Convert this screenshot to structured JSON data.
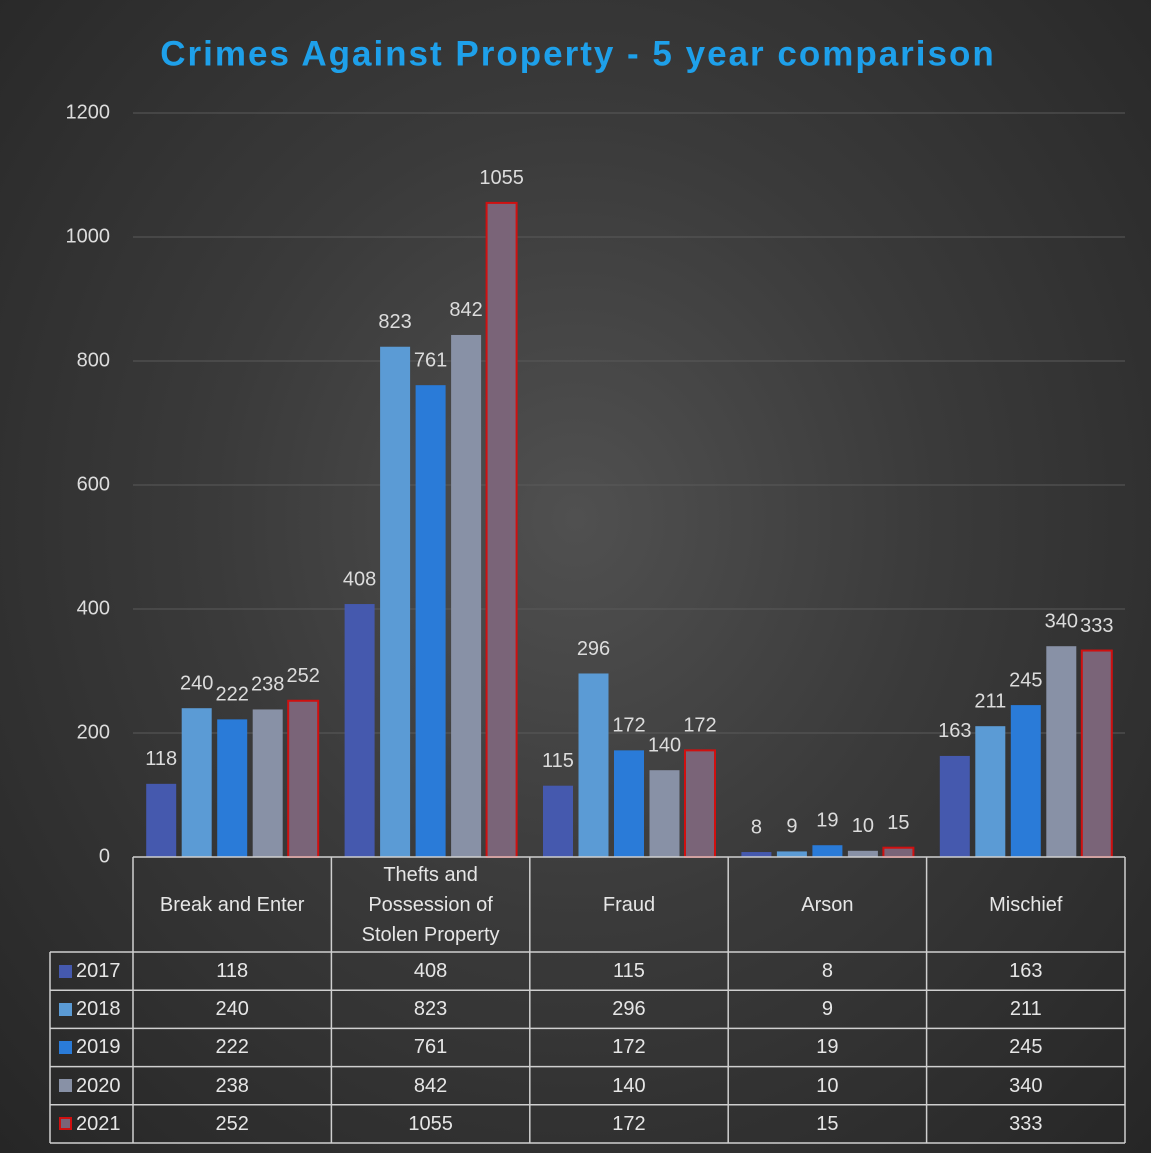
{
  "chart_data": {
    "type": "bar",
    "title": "Crimes Against Property - 5 year comparison",
    "categories": [
      "Break and Enter",
      "Thefts and Possession of Stolen Property",
      "Fraud",
      "Arson",
      "Mischief"
    ],
    "series": [
      {
        "name": "2017",
        "color": "#4559ae",
        "values": [
          118,
          408,
          115,
          8,
          163
        ]
      },
      {
        "name": "2018",
        "color": "#5b9bd5",
        "values": [
          240,
          823,
          296,
          9,
          211
        ]
      },
      {
        "name": "2019",
        "color": "#2a7bd8",
        "values": [
          222,
          761,
          172,
          19,
          245
        ]
      },
      {
        "name": "2020",
        "color": "#8891a6",
        "values": [
          238,
          842,
          140,
          10,
          340
        ]
      },
      {
        "name": "2021",
        "color": "#7a6478",
        "outline": "#d01010",
        "values": [
          252,
          1055,
          172,
          15,
          333
        ]
      }
    ],
    "ylim": [
      0,
      1200
    ],
    "yticks": [
      0,
      200,
      400,
      600,
      800,
      1000,
      1200
    ],
    "grid": true
  }
}
